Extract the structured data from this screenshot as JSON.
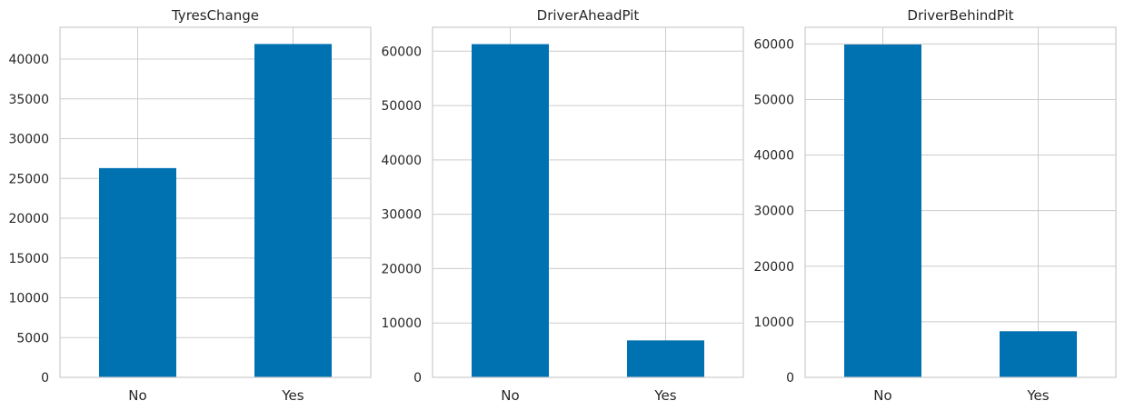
{
  "chart_data": [
    {
      "type": "bar",
      "title": "TyresChange",
      "categories": [
        "No",
        "Yes"
      ],
      "values": [
        26300,
        41900
      ],
      "yticks": [
        0,
        5000,
        10000,
        15000,
        20000,
        25000,
        30000,
        35000,
        40000
      ],
      "ylim": [
        0,
        44000
      ],
      "xlabel": "",
      "ylabel": "",
      "grid": true,
      "bar_color": "#0072b2"
    },
    {
      "type": "bar",
      "title": "DriverAheadPit",
      "categories": [
        "No",
        "Yes"
      ],
      "values": [
        61300,
        6800
      ],
      "yticks": [
        0,
        10000,
        20000,
        30000,
        40000,
        50000,
        60000
      ],
      "ylim": [
        0,
        64400
      ],
      "xlabel": "",
      "ylabel": "",
      "grid": true,
      "bar_color": "#0072b2"
    },
    {
      "type": "bar",
      "title": "DriverBehindPit",
      "categories": [
        "No",
        "Yes"
      ],
      "values": [
        59900,
        8300
      ],
      "yticks": [
        0,
        10000,
        20000,
        30000,
        40000,
        50000,
        60000
      ],
      "ylim": [
        0,
        63000
      ],
      "xlabel": "",
      "ylabel": "",
      "grid": true,
      "bar_color": "#0072b2"
    }
  ]
}
